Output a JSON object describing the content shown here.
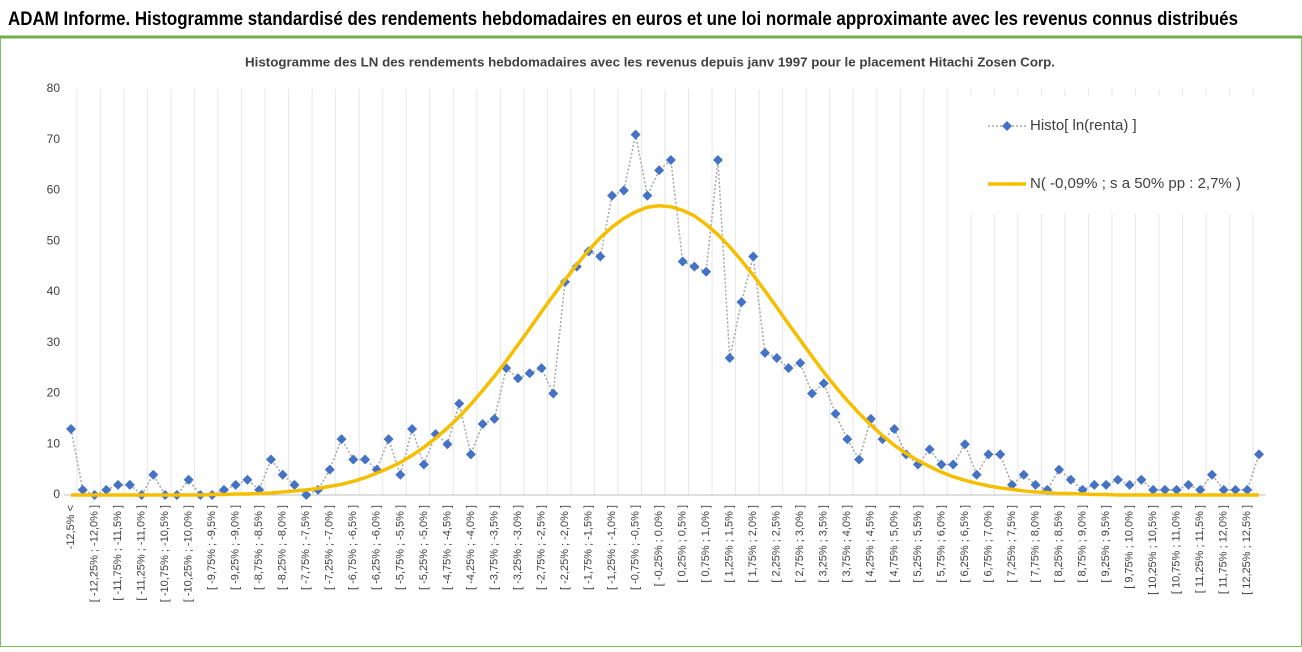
{
  "header": {
    "title": "ADAM Informe. Histogramme standardisé des rendements hebdomadaires en euros et une loi normale approximante avec les revenus connus distribués"
  },
  "chart_data": {
    "type": "line",
    "title": "Histogramme des LN des rendements hebdomadaires avec les revenus depuis janv 1997 pour le placement Hitachi Zosen Corp.",
    "categories": [
      "-12,5% <",
      null,
      "[ -12,25% ; -12,0% ]",
      null,
      "[ -11,75% ; -11,5% ]",
      null,
      "[ -11,25% ; -11,0% ]",
      null,
      "[ -10,75% ; -10,5% ]",
      null,
      "[ -10,25% ; -10,0% ]",
      null,
      "[ -9,75% ; -9,5% ]",
      null,
      "[ -9,25% ; -9,0% ]",
      null,
      "[ -8,75% ; -8,5% ]",
      null,
      "[ -8,25% ; -8,0% ]",
      null,
      "[ -7,75% ; -7,5% ]",
      null,
      "[ -7,25% ; -7,0% ]",
      null,
      "[ -6,75% ; -6,5% ]",
      null,
      "[ -6,25% ; -6,0% ]",
      null,
      "[ -5,75% ; -5,5% ]",
      null,
      "[ -5,25% ; -5,0% ]",
      null,
      "[ -4,75% ; -4,5% ]",
      null,
      "[ -4,25% ; -4,0% ]",
      null,
      "[ -3,75% ; -3,5% ]",
      null,
      "[ -3,25% ; -3,0% ]",
      null,
      "[ -2,75% ; -2,5% ]",
      null,
      "[ -2,25% ; -2,0% ]",
      null,
      "[ -1,75% ; -1,5% ]",
      null,
      "[ -1,25% ; -1,0% ]",
      null,
      "[ -0,75% ; -0,5% ]",
      null,
      "[ -0,25% ; 0,0% ]",
      null,
      "[ 0,25% ; 0,5% ]",
      null,
      "[ 0,75% ; 1,0% ]",
      null,
      "[ 1,25% ; 1,5% ]",
      null,
      "[ 1,75% ; 2,0% ]",
      null,
      "[ 2,25% ; 2,5% ]",
      null,
      "[ 2,75% ; 3,0% ]",
      null,
      "[ 3,25% ; 3,5% ]",
      null,
      "[ 3,75% ; 4,0% ]",
      null,
      "[ 4,25% ; 4,5% ]",
      null,
      "[ 4,75% ; 5,0% ]",
      null,
      "[ 5,25% ; 5,5% ]",
      null,
      "[ 5,75% ; 6,0% ]",
      null,
      "[ 6,25% ; 6,5% ]",
      null,
      "[ 6,75% ; 7,0% ]",
      null,
      "[ 7,25% ; 7,5% ]",
      null,
      "[ 7,75% ; 8,0% ]",
      null,
      "[ 8,25% ; 8,5% ]",
      null,
      "[ 8,75% ; 9,0% ]",
      null,
      "[ 9,25% ; 9,5% ]",
      null,
      "[ 9,75% ; 10,0% ]",
      null,
      "[ 10,25% ; 10,5% ]",
      null,
      "[ 10,75% ; 11,0% ]",
      null,
      "[ 11,25% ; 11,5% ]",
      null,
      "[ 11,75% ; 12,0% ]",
      null,
      "[ 12,25% ; 12,5% ]",
      null
    ],
    "series": [
      {
        "name": "Histo[ ln(renta) ]",
        "color": "#4472c4",
        "markers": true,
        "values": [
          13,
          1,
          0,
          1,
          2,
          2,
          0,
          4,
          0,
          0,
          3,
          0,
          0,
          1,
          2,
          3,
          1,
          7,
          4,
          2,
          0,
          1,
          5,
          11,
          7,
          7,
          5,
          11,
          4,
          13,
          6,
          12,
          10,
          18,
          8,
          14,
          15,
          25,
          23,
          24,
          25,
          20,
          42,
          45,
          48,
          47,
          59,
          60,
          71,
          59,
          64,
          66,
          46,
          45,
          44,
          66,
          27,
          38,
          47,
          28,
          27,
          25,
          26,
          20,
          22,
          16,
          11,
          7,
          15,
          11,
          13,
          8,
          6,
          9,
          6,
          6,
          10,
          4,
          8,
          8,
          2,
          4,
          2,
          1,
          5,
          3,
          1,
          2,
          2,
          3,
          2,
          3,
          1,
          1,
          1,
          2,
          1,
          4,
          1,
          1,
          1,
          8
        ]
      },
      {
        "name": "N( -0,09% ; s a 50% pp : 2,7% )",
        "color": "#f5bf00",
        "markers": false,
        "values": [
          0,
          0,
          0,
          0,
          0,
          0,
          0,
          0,
          0,
          0,
          0,
          0,
          0.1,
          0.1,
          0.2,
          0.2,
          0.3,
          0.4,
          0.6,
          0.8,
          1.0,
          1.3,
          1.7,
          2.1,
          2.7,
          3.4,
          4.3,
          5.3,
          6.4,
          7.8,
          9.4,
          11.2,
          13.2,
          15.4,
          17.9,
          20.6,
          23.4,
          26.4,
          29.6,
          32.8,
          36.1,
          39.3,
          42.4,
          45.4,
          48.2,
          50.7,
          52.8,
          54.5,
          55.8,
          56.7,
          57.0,
          56.8,
          56.1,
          55.0,
          53.3,
          51.3,
          48.9,
          46.2,
          43.3,
          40.2,
          37.0,
          33.7,
          30.5,
          27.3,
          24.2,
          21.3,
          18.6,
          16.1,
          13.8,
          11.7,
          9.8,
          8.2,
          6.8,
          5.6,
          4.5,
          3.6,
          2.9,
          2.3,
          1.8,
          1.4,
          1.1,
          0.8,
          0.6,
          0.5,
          0.3,
          0.3,
          0.2,
          0.1,
          0.1,
          0,
          0,
          0,
          0,
          0,
          0,
          0,
          0,
          0,
          0,
          0,
          0,
          0
        ]
      }
    ],
    "ylim": [
      0,
      80
    ],
    "yticks": [
      0,
      10,
      20,
      30,
      40,
      50,
      60,
      70,
      80
    ],
    "grid": false,
    "legend": "top-right"
  }
}
